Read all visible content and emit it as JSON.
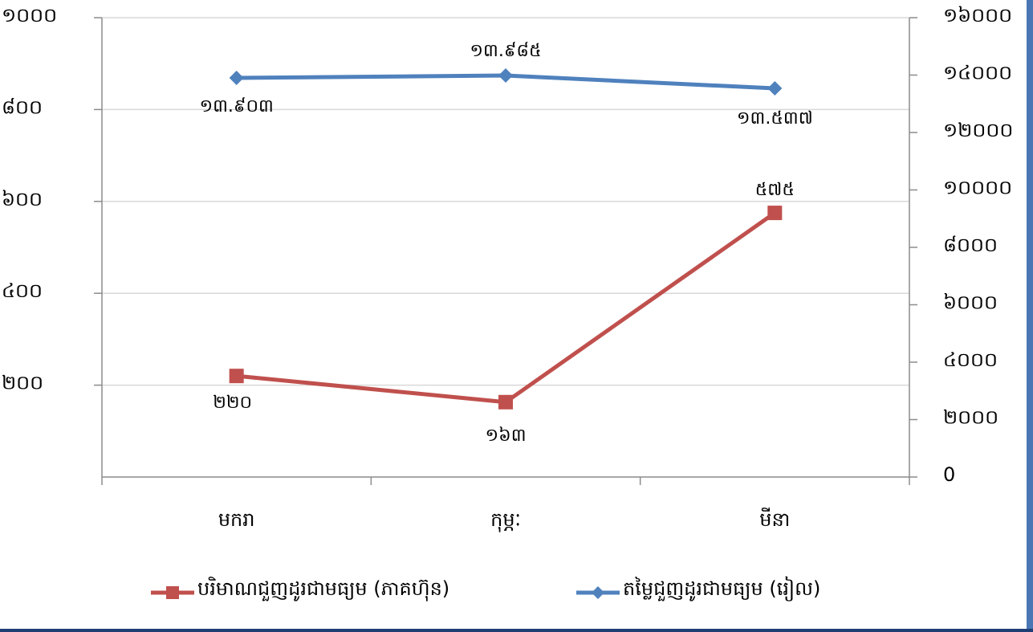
{
  "colors": {
    "background": "#ffffff",
    "axis": "#8c8c8c",
    "gridline": "#d9d9d9",
    "frame_right": "#4a76b4",
    "frame_bottom": "#1f3e74"
  },
  "chart_data": {
    "type": "line",
    "categories": [
      "មករា",
      "កុម្ភៈ",
      "មីនា"
    ],
    "y_left": {
      "range": [
        0,
        1000
      ],
      "ticks": [
        {
          "value": 200,
          "label": "២០០"
        },
        {
          "value": 400,
          "label": "៤០០"
        },
        {
          "value": 600,
          "label": "៦០០"
        },
        {
          "value": 800,
          "label": "៨០០"
        },
        {
          "value": 1000,
          "label": "១០០០"
        }
      ]
    },
    "y_right": {
      "range": [
        0,
        16000
      ],
      "ticks": [
        {
          "value": 0,
          "label": "0"
        },
        {
          "value": 2000,
          "label": "២០០០"
        },
        {
          "value": 4000,
          "label": "៤០០០"
        },
        {
          "value": 6000,
          "label": "៦០០០"
        },
        {
          "value": 8000,
          "label": "៨០០០"
        },
        {
          "value": 10000,
          "label": "១០០០០"
        },
        {
          "value": 12000,
          "label": "១២០០០"
        },
        {
          "value": 14000,
          "label": "១៤០០០"
        },
        {
          "value": 16000,
          "label": "១៦០០០"
        }
      ]
    },
    "grid": true,
    "legend_position": "bottom",
    "series": [
      {
        "name": "បរិមាណជួញដូរជាមធ្យម (ភាគហ៊ុន)",
        "axis": "left",
        "color": "#c0504d",
        "marker": "square",
        "values": [
          220,
          163,
          575
        ],
        "labels": [
          "២២០",
          "១៦៣",
          "៥៧៥"
        ]
      },
      {
        "name": "តម្លៃជួញដូរជាមធ្យម (រៀល)",
        "axis": "right",
        "color": "#4f81bd",
        "marker": "diamond",
        "values": [
          13903,
          13985,
          13537
        ],
        "labels": [
          "១៣.៩០៣",
          "១៣.៩៨៥",
          "១៣.៥៣៧"
        ]
      }
    ]
  }
}
